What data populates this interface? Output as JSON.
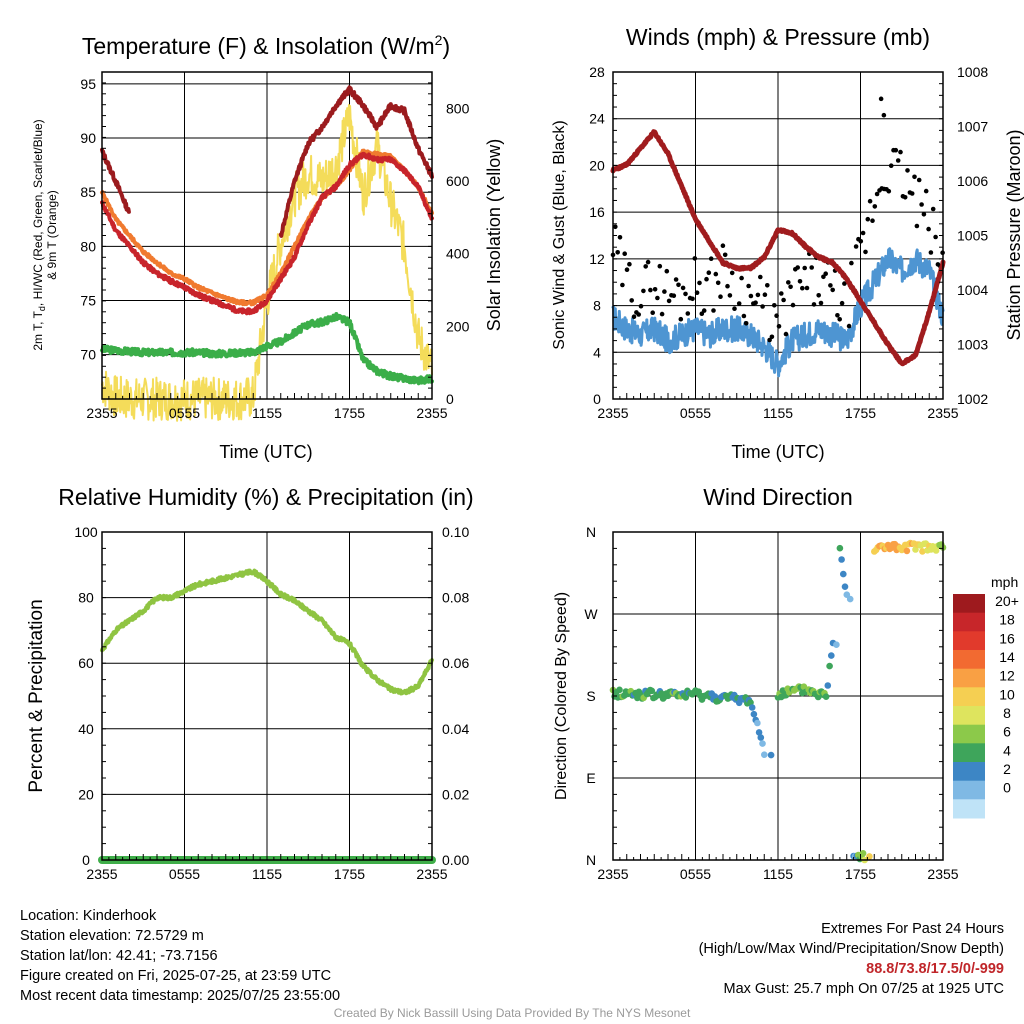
{
  "time_ticks": [
    "2355",
    "0555",
    "1155",
    "1755",
    "2355"
  ],
  "panels": {
    "temperature": {
      "title": "Temperature (F) & Insolation (W/m",
      "title_sup": "2",
      "title_end": ")",
      "ylabel_line1_a": "2m T, T",
      "ylabel_line1_sub": "d",
      "ylabel_line1_b": ", HI/WC (Red, Green, Scarlet/Blue)",
      "ylabel_line2": "& 9m T (Orange)",
      "y2label": "Solar Insolation (Yellow)",
      "xlabel": "Time (UTC)",
      "yticks": [
        "70",
        "75",
        "80",
        "85",
        "90",
        "95"
      ],
      "y2ticks": [
        "0",
        "200",
        "400",
        "600",
        "800"
      ]
    },
    "winds": {
      "title": "Winds (mph) & Pressure (mb)",
      "ylabel": "Sonic Wind & Gust (Blue, Black)",
      "y2label": "Station Pressure (Maroon)",
      "xlabel": "Time (UTC)",
      "yticks": [
        "0",
        "4",
        "8",
        "12",
        "16",
        "20",
        "24",
        "28"
      ],
      "y2ticks": [
        "1002",
        "1003",
        "1004",
        "1005",
        "1006",
        "1007",
        "1008"
      ]
    },
    "humidity": {
      "title": "Relative Humidity (%) & Precipitation (in)",
      "ylabel": "Percent & Precipitation",
      "yticks": [
        "0",
        "20",
        "40",
        "60",
        "80",
        "100"
      ],
      "y2ticks": [
        "0.00",
        "0.02",
        "0.04",
        "0.06",
        "0.08",
        "0.10"
      ]
    },
    "direction": {
      "title": "Wind Direction",
      "ylabel": "Direction (Colored By Speed)",
      "yticks": [
        "N",
        "E",
        "S",
        "W",
        "N"
      ],
      "legend_title": "mph",
      "legend_labels": [
        "20+",
        "18",
        "16",
        "14",
        "12",
        "10",
        "8",
        "6",
        "4",
        "2",
        "0"
      ],
      "legend_colors": [
        "#9e1a1e",
        "#c7262a",
        "#e13a2c",
        "#f26a31",
        "#f9a044",
        "#f5cf52",
        "#dee45e",
        "#8cc94a",
        "#3ea55b",
        "#3d86c5",
        "#7fb9e4",
        "#bfe3f7"
      ]
    }
  },
  "colors": {
    "temp_red": "#c8242b",
    "dewpoint_green": "#3bae49",
    "heat_index_scarlet": "#9b1b1e",
    "temp9m_orange": "#f07a2f",
    "insolation_yellow": "#f4dc5a",
    "wind_blue": "#4e95d2",
    "gust_black": "#000000",
    "pressure_maroon": "#a01c1e",
    "rh_lightgreen": "#8fc442",
    "precip_green": "#3fae49"
  },
  "chart_data": [
    {
      "type": "line",
      "title": "Temperature (F) & Insolation (W/m2)",
      "xlabel": "Time (UTC)",
      "ylabel": "2m T, Td, HI/WC (Red, Green, Scarlet/Blue) & 9m T (Orange)",
      "y2label": "Solar Insolation (Yellow)",
      "ylim": [
        65.9,
        96.1
      ],
      "y2lim": [
        0,
        900
      ],
      "x_hours": [
        0,
        1,
        2,
        3,
        4,
        5,
        6,
        7,
        8,
        9,
        10,
        11,
        12,
        13,
        14,
        15,
        16,
        17,
        18,
        19,
        20,
        21,
        22,
        23,
        24
      ],
      "series": [
        {
          "name": "2m T (Red)",
          "values": [
            84,
            81.5,
            80,
            78.5,
            77.5,
            76.8,
            76.2,
            75.5,
            75,
            74.5,
            74,
            74,
            75,
            77,
            79,
            82,
            84.5,
            85.5,
            87.5,
            88.5,
            88,
            88,
            87,
            85.5,
            82.5
          ]
        },
        {
          "name": "9m T (Orange)",
          "values": [
            85,
            82.5,
            81,
            79.5,
            78.5,
            77.5,
            77,
            76.2,
            75.7,
            75.2,
            74.8,
            74.8,
            75.5,
            77.5,
            80,
            82.5,
            84.5,
            85.5,
            87,
            88.8,
            88.5,
            88.3,
            87,
            85.5,
            83
          ]
        },
        {
          "name": "HI/WC (Scarlet)",
          "values": [
            88.8,
            86,
            83,
            null,
            null,
            null,
            null,
            null,
            null,
            null,
            null,
            null,
            null,
            81,
            86,
            89.5,
            91,
            93,
            94.5,
            93,
            91,
            93,
            92.5,
            89,
            86.5
          ]
        },
        {
          "name": "Td (Green)",
          "values": [
            70.5,
            70.4,
            70.3,
            70.2,
            70.2,
            70.2,
            70.2,
            70.2,
            70.1,
            70.1,
            70.2,
            70.2,
            70.8,
            71.2,
            72,
            72.8,
            73,
            73.5,
            73,
            69.5,
            68.5,
            68,
            67.8,
            67.6,
            67.8
          ]
        },
        {
          "name": "Solar Insolation (Yellow)",
          "values": [
            40,
            5,
            0,
            0,
            0,
            0,
            0,
            0,
            0,
            0,
            0,
            5,
            270,
            430,
            560,
            620,
            600,
            640,
            780,
            560,
            700,
            540,
            420,
            170,
            80
          ]
        }
      ]
    },
    {
      "type": "line",
      "title": "Winds (mph) & Pressure (mb)",
      "xlabel": "Time (UTC)",
      "ylabel": "Sonic Wind & Gust (Blue, Black)",
      "y2label": "Station Pressure (Maroon)",
      "ylim": [
        0,
        28
      ],
      "y2lim": [
        1002,
        1008
      ],
      "x_hours": [
        0,
        1,
        2,
        3,
        4,
        5,
        6,
        7,
        8,
        9,
        10,
        11,
        12,
        13,
        14,
        15,
        16,
        17,
        18,
        19,
        20,
        21,
        22,
        23,
        24
      ],
      "series": [
        {
          "name": "Sonic Wind (Blue)",
          "values": [
            7,
            6,
            5.5,
            6,
            5,
            5.5,
            6,
            5.5,
            6,
            6,
            5.5,
            4.5,
            3,
            5,
            5.5,
            6,
            5.5,
            5,
            8,
            10,
            12,
            11,
            12,
            11,
            7
          ]
        },
        {
          "name": "Gust (Black)",
          "values": [
            13,
            10,
            9,
            10,
            9,
            9,
            10,
            9.5,
            11,
            10,
            8.5,
            8,
            6,
            9,
            10,
            10,
            9,
            8,
            12,
            17,
            20,
            19,
            17,
            15,
            11
          ]
        },
        {
          "name": "Station Pressure (Maroon)",
          "values": [
            1006.2,
            1006.3,
            1006.6,
            1006.9,
            1006.5,
            1005.9,
            1005.3,
            1004.9,
            1004.5,
            1004.4,
            1004.4,
            1004.6,
            1005.1,
            1005.05,
            1004.8,
            1004.6,
            1004.5,
            1004.2,
            1003.8,
            1003.4,
            1003.0,
            1002.65,
            1002.8,
            1003.6,
            1004.5
          ]
        }
      ],
      "max_gust_points": [
        {
          "x": 19.5,
          "y": 25.7
        },
        {
          "x": 19.7,
          "y": 24.3
        }
      ]
    },
    {
      "type": "line",
      "title": "Relative Humidity (%) & Precipitation (in)",
      "ylabel": "Percent & Precipitation",
      "ylim": [
        0,
        100
      ],
      "y2lim": [
        0,
        0.1
      ],
      "x_hours": [
        0,
        1,
        2,
        3,
        4,
        5,
        6,
        7,
        8,
        9,
        10,
        11,
        12,
        13,
        14,
        15,
        16,
        17,
        18,
        19,
        20,
        21,
        22,
        23,
        24
      ],
      "series": [
        {
          "name": "Relative Humidity",
          "values": [
            64,
            70,
            73,
            76,
            80,
            80,
            82,
            84,
            85,
            86,
            87,
            88,
            85,
            81,
            79,
            76,
            73,
            68,
            66,
            59,
            55,
            52,
            51,
            53,
            61
          ]
        },
        {
          "name": "Precipitation",
          "values": [
            0,
            0,
            0,
            0,
            0,
            0,
            0,
            0,
            0,
            0,
            0,
            0,
            0,
            0,
            0,
            0,
            0,
            0,
            0,
            0,
            0,
            0,
            0,
            0,
            0
          ]
        }
      ]
    },
    {
      "type": "scatter",
      "title": "Wind Direction",
      "ylabel": "Direction (Colored By Speed)",
      "ylim": [
        0,
        360
      ],
      "yticks": [
        "N",
        "E",
        "S",
        "W",
        "N"
      ],
      "color_scale_mph": [
        0,
        2,
        4,
        6,
        8,
        10,
        12,
        14,
        16,
        18,
        20
      ],
      "points_deg_by_hour": [
        {
          "x": 0,
          "y": 183,
          "speed": 6
        },
        {
          "x": 2,
          "y": 182,
          "speed": 6
        },
        {
          "x": 4,
          "y": 181,
          "speed": 6
        },
        {
          "x": 6,
          "y": 182,
          "speed": 6
        },
        {
          "x": 8,
          "y": 178,
          "speed": 5
        },
        {
          "x": 10,
          "y": 175,
          "speed": 4
        },
        {
          "x": 11,
          "y": 120,
          "speed": 2
        },
        {
          "x": 12,
          "y": 182,
          "speed": 6
        },
        {
          "x": 14,
          "y": 187,
          "speed": 7
        },
        {
          "x": 15.5,
          "y": 180,
          "speed": 6
        },
        {
          "x": 16,
          "y": 240,
          "speed": 3
        },
        {
          "x": 16.5,
          "y": 345,
          "speed": 5
        },
        {
          "x": 17,
          "y": 290,
          "speed": 3
        },
        {
          "x": 17.5,
          "y": 5,
          "speed": 3
        },
        {
          "x": 18.3,
          "y": 5,
          "speed": 10
        },
        {
          "x": 19,
          "y": 340,
          "speed": 12
        },
        {
          "x": 20,
          "y": 345,
          "speed": 14
        },
        {
          "x": 21,
          "y": 340,
          "speed": 13
        },
        {
          "x": 22,
          "y": 345,
          "speed": 12
        },
        {
          "x": 23,
          "y": 342,
          "speed": 10
        },
        {
          "x": 24,
          "y": 343,
          "speed": 7
        }
      ]
    }
  ],
  "info": {
    "location": "Location: Kinderhook",
    "elevation": "Station elevation: 72.5729 m",
    "latlon": "Station lat/lon: 42.41; -73.7156",
    "created": "Figure created on Fri, 2025-07-25, at 23:59 UTC",
    "recent": "Most recent data timestamp: 2025/07/25 23:55:00",
    "extremes_title": "Extremes For Past 24 Hours",
    "extremes_subtitle": "(High/Low/Max Wind/Precipitation/Snow Depth)",
    "extremes_values": "88.8/73.8/17.5/0/-999",
    "max_gust": "Max Gust: 25.7 mph On 07/25 at 1925 UTC",
    "credit": "Created By Nick Bassill Using Data Provided By The NYS Mesonet"
  }
}
